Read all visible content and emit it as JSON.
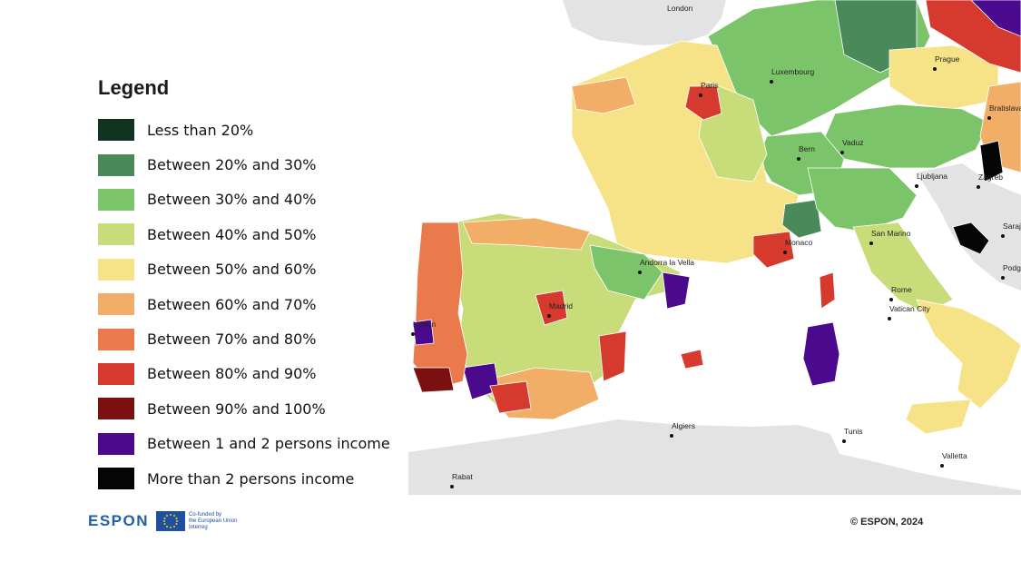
{
  "legend": {
    "title": "Legend",
    "items": [
      {
        "label": "Less than 20%",
        "color": "#12331f"
      },
      {
        "label": "Between 20% and 30%",
        "color": "#4a8a5a"
      },
      {
        "label": "Between 30% and 40%",
        "color": "#7cc46a"
      },
      {
        "label": "Between 40% and 50%",
        "color": "#c9dc7a"
      },
      {
        "label": "Between 50% and 60%",
        "color": "#f6e388"
      },
      {
        "label": "Between 60% and 70%",
        "color": "#f2ad66"
      },
      {
        "label": "Between 70% and 80%",
        "color": "#ea7a4c"
      },
      {
        "label": "Between 80% and 90%",
        "color": "#d63a2f"
      },
      {
        "label": "Between 90% and 100%",
        "color": "#7b1010"
      },
      {
        "label": "Between 1 and 2 persons income",
        "color": "#4b0a8e"
      },
      {
        "label": "More than 2 persons income",
        "color": "#050505"
      }
    ]
  },
  "cities": [
    "London",
    "Paris",
    "Luxembourg",
    "Prague",
    "Bratislava",
    "Bern",
    "Vaduz",
    "Ljubljana",
    "Zagreb",
    "San Marino",
    "Andorra la Vella",
    "Monaco",
    "Madrid",
    "Lisbon",
    "Rome",
    "Vatican City",
    "Sarajevo",
    "Podgorica",
    "Algiers",
    "Tunis",
    "Valletta",
    "Rabat"
  ],
  "footer": {
    "logo": "ESPON",
    "eu_line1": "Co-funded by",
    "eu_line2": "the European Union",
    "eu_line3": "Interreg",
    "copyright": "© ESPON, 2024"
  },
  "colors": {
    "sea": "#ffffff",
    "non_espon_land": "#e3e3e3",
    "border": "#ffffff"
  }
}
